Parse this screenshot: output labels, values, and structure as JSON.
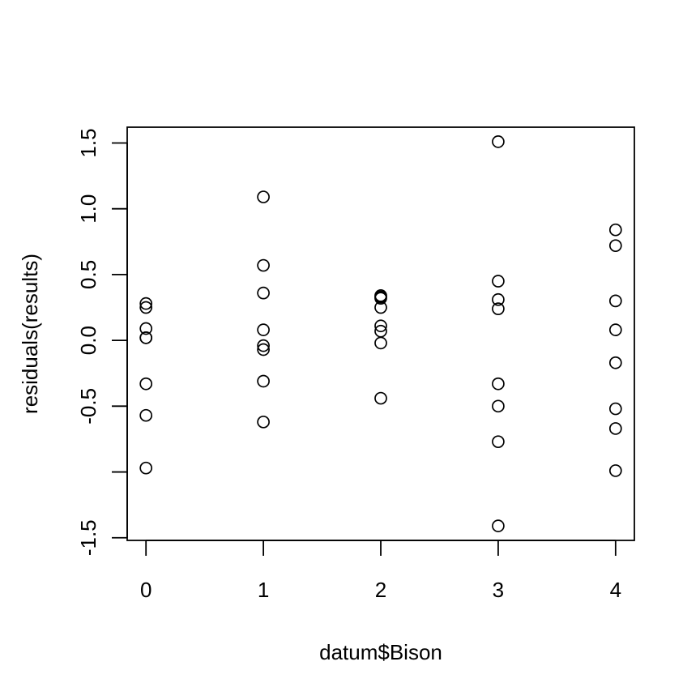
{
  "chart_data": {
    "type": "scatter",
    "title": "",
    "xlabel": "datum$Bison",
    "ylabel": "residuals(results)",
    "xlim": [
      -0.16,
      4.16
    ],
    "ylim": [
      -1.52,
      1.62
    ],
    "x_ticks": [
      0,
      1,
      2,
      3,
      4
    ],
    "x_tick_labels": [
      "0",
      "1",
      "2",
      "3",
      "4"
    ],
    "y_ticks": [
      -1.5,
      -1.0,
      -0.5,
      0.0,
      0.5,
      1.0,
      1.5
    ],
    "y_tick_labels": [
      "-1.5",
      "",
      "-0.5",
      "0.0",
      "0.5",
      "1.0",
      "1.5"
    ],
    "grid": false,
    "marker": "open-circle",
    "series": [
      {
        "name": "residuals",
        "points": [
          {
            "x": 0,
            "y": 0.28
          },
          {
            "x": 0,
            "y": 0.25
          },
          {
            "x": 0,
            "y": 0.09
          },
          {
            "x": 0,
            "y": 0.02
          },
          {
            "x": 0,
            "y": 0.02
          },
          {
            "x": 0,
            "y": -0.33
          },
          {
            "x": 0,
            "y": -0.57
          },
          {
            "x": 0,
            "y": -0.97
          },
          {
            "x": 1,
            "y": 1.09
          },
          {
            "x": 1,
            "y": 0.57
          },
          {
            "x": 1,
            "y": 0.36
          },
          {
            "x": 1,
            "y": 0.08
          },
          {
            "x": 1,
            "y": -0.04
          },
          {
            "x": 1,
            "y": -0.07
          },
          {
            "x": 1,
            "y": -0.31
          },
          {
            "x": 1,
            "y": -0.62
          },
          {
            "x": 2,
            "y": 0.34
          },
          {
            "x": 2,
            "y": 0.33
          },
          {
            "x": 2,
            "y": 0.32
          },
          {
            "x": 2,
            "y": 0.25
          },
          {
            "x": 2,
            "y": 0.11
          },
          {
            "x": 2,
            "y": 0.07
          },
          {
            "x": 2,
            "y": -0.02
          },
          {
            "x": 2,
            "y": -0.44
          },
          {
            "x": 3,
            "y": 1.51
          },
          {
            "x": 3,
            "y": 0.45
          },
          {
            "x": 3,
            "y": 0.31
          },
          {
            "x": 3,
            "y": 0.24
          },
          {
            "x": 3,
            "y": -0.33
          },
          {
            "x": 3,
            "y": -0.5
          },
          {
            "x": 3,
            "y": -0.77
          },
          {
            "x": 3,
            "y": -1.41
          },
          {
            "x": 4,
            "y": 0.84
          },
          {
            "x": 4,
            "y": 0.72
          },
          {
            "x": 4,
            "y": 0.3
          },
          {
            "x": 4,
            "y": 0.08
          },
          {
            "x": 4,
            "y": -0.17
          },
          {
            "x": 4,
            "y": -0.52
          },
          {
            "x": 4,
            "y": -0.67
          },
          {
            "x": 4,
            "y": -0.99
          }
        ]
      }
    ]
  }
}
